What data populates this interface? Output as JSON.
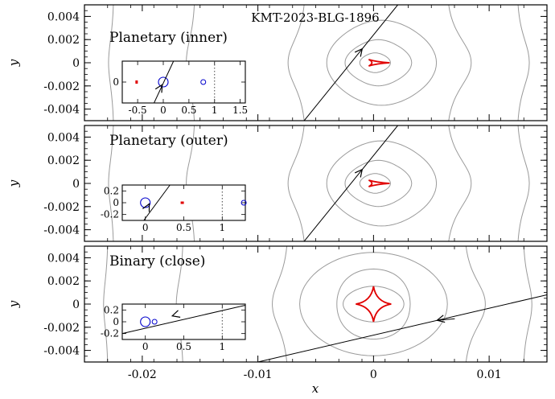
{
  "figure_title": "KMT-2023-BLG-1896",
  "x_axis_label": "x",
  "y_axis_label": "y",
  "x_ticks": [
    "-0.02",
    "-0.01",
    "0",
    "0.01"
  ],
  "y_ticks": [
    "0.004",
    "0.002",
    "0",
    "-0.002",
    "-0.004"
  ],
  "colors": {
    "caustic": "#e00000",
    "contour": "#9a9a9a",
    "trajectory": "#000000",
    "lens": "#0000cc"
  },
  "panels": [
    {
      "label": "Planetary (inner)",
      "inset": {
        "y_ticks": [
          "0"
        ],
        "x_ticks": [
          "-0.5",
          "0",
          "0.5",
          "1",
          "1.5"
        ]
      }
    },
    {
      "label": "Planetary (outer)",
      "inset": {
        "y_ticks": [
          "0.2",
          "0",
          "-0.2"
        ],
        "x_ticks": [
          "0",
          "0.5",
          "1"
        ]
      }
    },
    {
      "label": "Binary (close)",
      "inset": {
        "y_ticks": [
          "0.2",
          "0",
          "-0.2"
        ],
        "x_ticks": [
          "0",
          "0.5",
          "1"
        ]
      }
    }
  ],
  "chart_data": {
    "type": "line",
    "title": "KMT-2023-BLG-1896",
    "xlabel": "x",
    "ylabel": "y",
    "xlim": [
      -0.025,
      0.015
    ],
    "ylim": [
      -0.005,
      0.005
    ],
    "panels": [
      {
        "name": "Planetary (inner)",
        "trajectory": {
          "x": [
            -0.006,
            0.0021
          ],
          "y": [
            -0.005,
            0.005
          ]
        },
        "caustic": "planetary central"
      },
      {
        "name": "Planetary (outer)",
        "trajectory": {
          "x": [
            -0.006,
            0.0021
          ],
          "y": [
            -0.005,
            0.005
          ]
        },
        "caustic": "planetary central"
      },
      {
        "name": "Binary (close)",
        "trajectory": {
          "x": [
            -0.01,
            0.015
          ],
          "y": [
            -0.005,
            0.0008
          ]
        },
        "caustic": "astroid"
      }
    ]
  }
}
